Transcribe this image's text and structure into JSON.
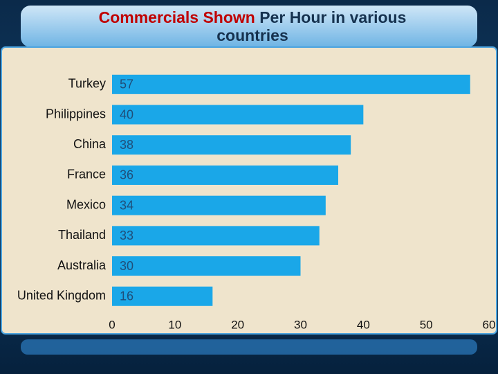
{
  "chart_data": {
    "type": "bar",
    "orientation": "horizontal",
    "title": [
      "Commercials Shown",
      "Per Hour in various",
      "countries"
    ],
    "title_colors": [
      "#c00000",
      "#16324f",
      "#16324f"
    ],
    "categories": [
      "Turkey",
      "Philippines",
      "China",
      "France",
      "Mexico",
      "Thailand",
      "Australia",
      "United Kingdom"
    ],
    "values": [
      57,
      40,
      38,
      36,
      34,
      33,
      30,
      16
    ],
    "color": "#1aa7e8",
    "xlim": [
      0,
      60
    ],
    "xticks": [
      0,
      10,
      20,
      30,
      40,
      50,
      60
    ],
    "grid": false
  }
}
